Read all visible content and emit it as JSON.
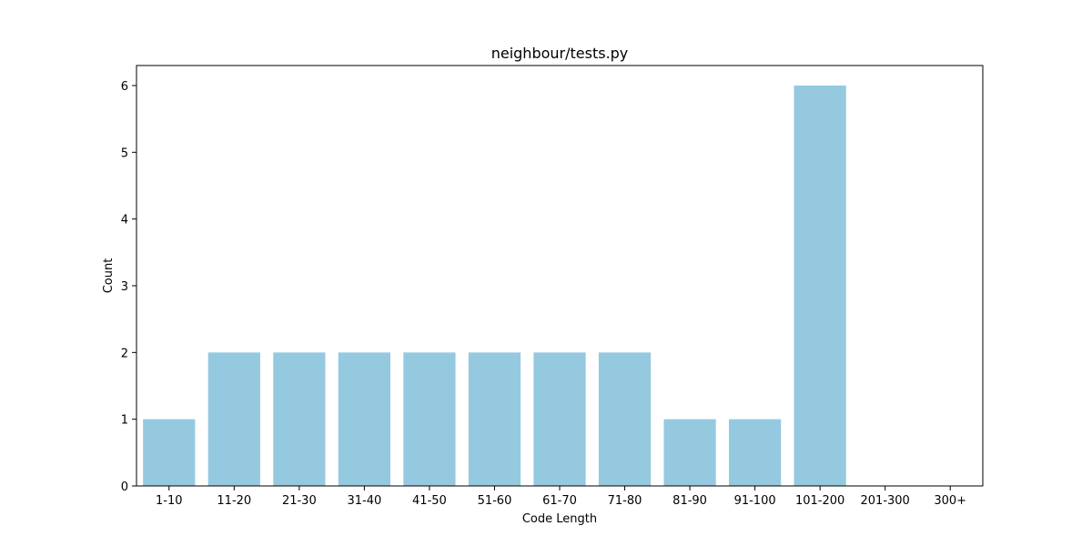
{
  "chart_data": {
    "type": "bar",
    "title": "neighbour/tests.py",
    "xlabel": "Code Length",
    "ylabel": "Count",
    "categories": [
      "1-10",
      "11-20",
      "21-30",
      "31-40",
      "41-50",
      "51-60",
      "61-70",
      "71-80",
      "81-90",
      "91-100",
      "101-200",
      "201-300",
      "300+"
    ],
    "values": [
      1,
      2,
      2,
      2,
      2,
      2,
      2,
      2,
      1,
      1,
      6,
      0,
      0
    ],
    "ylim": [
      0,
      6.3
    ],
    "yticks": [
      0,
      1,
      2,
      3,
      4,
      5,
      6
    ],
    "bar_color": "#95c9df",
    "grid": false
  }
}
